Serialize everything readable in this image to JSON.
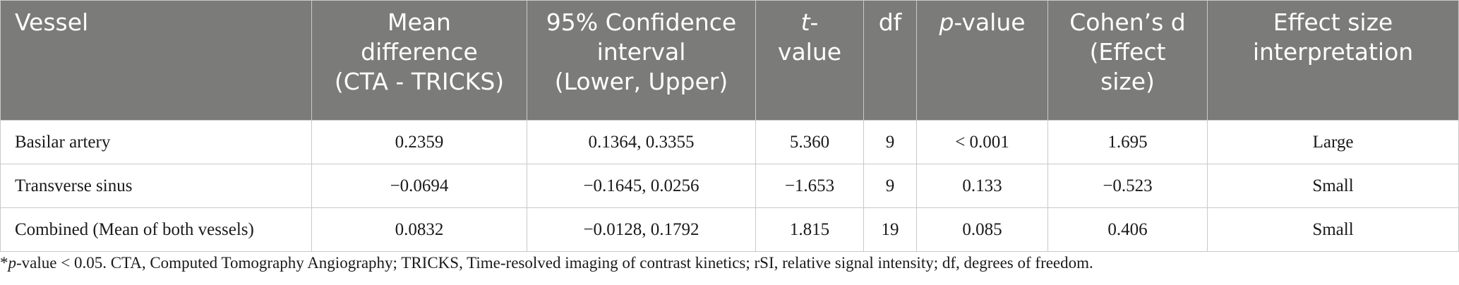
{
  "table": {
    "headers": [
      {
        "lines": [
          "Vessel"
        ]
      },
      {
        "lines": [
          "Mean",
          "difference",
          "(CTA - TRICKS)"
        ]
      },
      {
        "lines": [
          "95% Confidence",
          "interval",
          "(Lower, Upper)"
        ]
      },
      {
        "italic": "t",
        "rest": "-value"
      },
      {
        "lines": [
          "df"
        ]
      },
      {
        "italic": "p",
        "rest": "-value"
      },
      {
        "lines": [
          "Cohen’s d",
          "(Effect size)"
        ]
      },
      {
        "lines": [
          "Effect size",
          "interpretation"
        ]
      }
    ],
    "rows": [
      [
        "Basilar artery",
        "0.2359",
        "0.1364, 0.3355",
        "5.360",
        "9",
        "< 0.001",
        "1.695",
        "Large"
      ],
      [
        "Transverse sinus",
        "−0.0694",
        "−0.1645, 0.0256",
        "−1.653",
        "9",
        "0.133",
        "−0.523",
        "Small"
      ],
      [
        "Combined (Mean of both vessels)",
        "0.0832",
        "−0.0128, 0.1792",
        "1.815",
        "19",
        "0.085",
        "0.406",
        "Small"
      ]
    ]
  },
  "footnote": {
    "star": "*",
    "italic": "p",
    "text": "-value < 0.05. CTA, Computed Tomography Angiography; TRICKS, Time-resolved imaging of contrast kinetics; rSI, relative signal intensity; df, degrees of freedom."
  }
}
